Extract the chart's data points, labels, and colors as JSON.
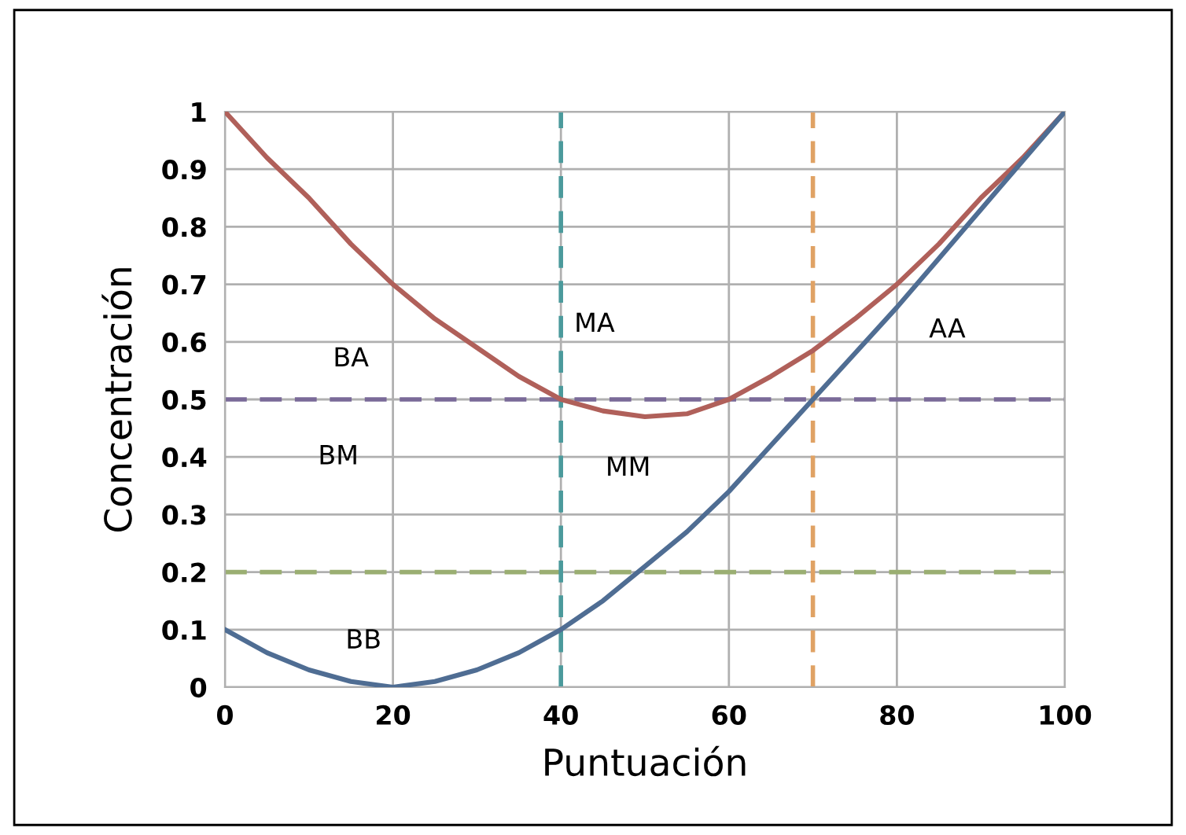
{
  "chart_data": {
    "type": "line",
    "xlabel": "Puntuación",
    "ylabel": "Concentración",
    "x": [
      0,
      5,
      10,
      15,
      20,
      25,
      30,
      35,
      40,
      45,
      50,
      55,
      60,
      65,
      70,
      75,
      80,
      85,
      90,
      95,
      100
    ],
    "series": [
      {
        "color": "#b0605a",
        "values": [
          1,
          0.92,
          0.85,
          0.77,
          0.7,
          0.64,
          0.59,
          0.54,
          0.5,
          0.48,
          0.47,
          0.475,
          0.5,
          0.54,
          0.585,
          0.64,
          0.7,
          0.77,
          0.85,
          0.92,
          1
        ]
      },
      {
        "color": "#4f6d93",
        "values": [
          0.1,
          0.06,
          0.03,
          0.01,
          0.0,
          0.01,
          0.03,
          0.06,
          0.1,
          0.15,
          0.21,
          0.27,
          0.34,
          0.42,
          0.5,
          0.58,
          0.66,
          0.745,
          0.83,
          0.915,
          1
        ]
      }
    ],
    "xlim": [
      0,
      100
    ],
    "xticks": [
      0,
      20,
      40,
      60,
      80,
      100
    ],
    "ylim": [
      0,
      1
    ],
    "yticks": [
      0,
      0.1,
      0.2,
      0.3,
      0.4,
      0.5,
      0.6,
      0.7,
      0.8,
      0.9,
      1
    ],
    "grid": true,
    "marker": "none",
    "line_style": "solid",
    "ref_lines": [
      {
        "axis": "y",
        "value": 0.5,
        "color": "#7a6a98",
        "line_style": "dashed"
      },
      {
        "axis": "y",
        "value": 0.2,
        "color": "#9aae72",
        "line_style": "dashed"
      },
      {
        "axis": "x",
        "value": 40,
        "color": "#4b9a9c",
        "line_style": "dashed"
      },
      {
        "axis": "x",
        "value": 70,
        "color": "#e0a264",
        "line_style": "dashed"
      }
    ],
    "annotations": [
      "BA",
      "MA",
      "AA",
      "BM",
      "MM",
      "BB"
    ]
  }
}
